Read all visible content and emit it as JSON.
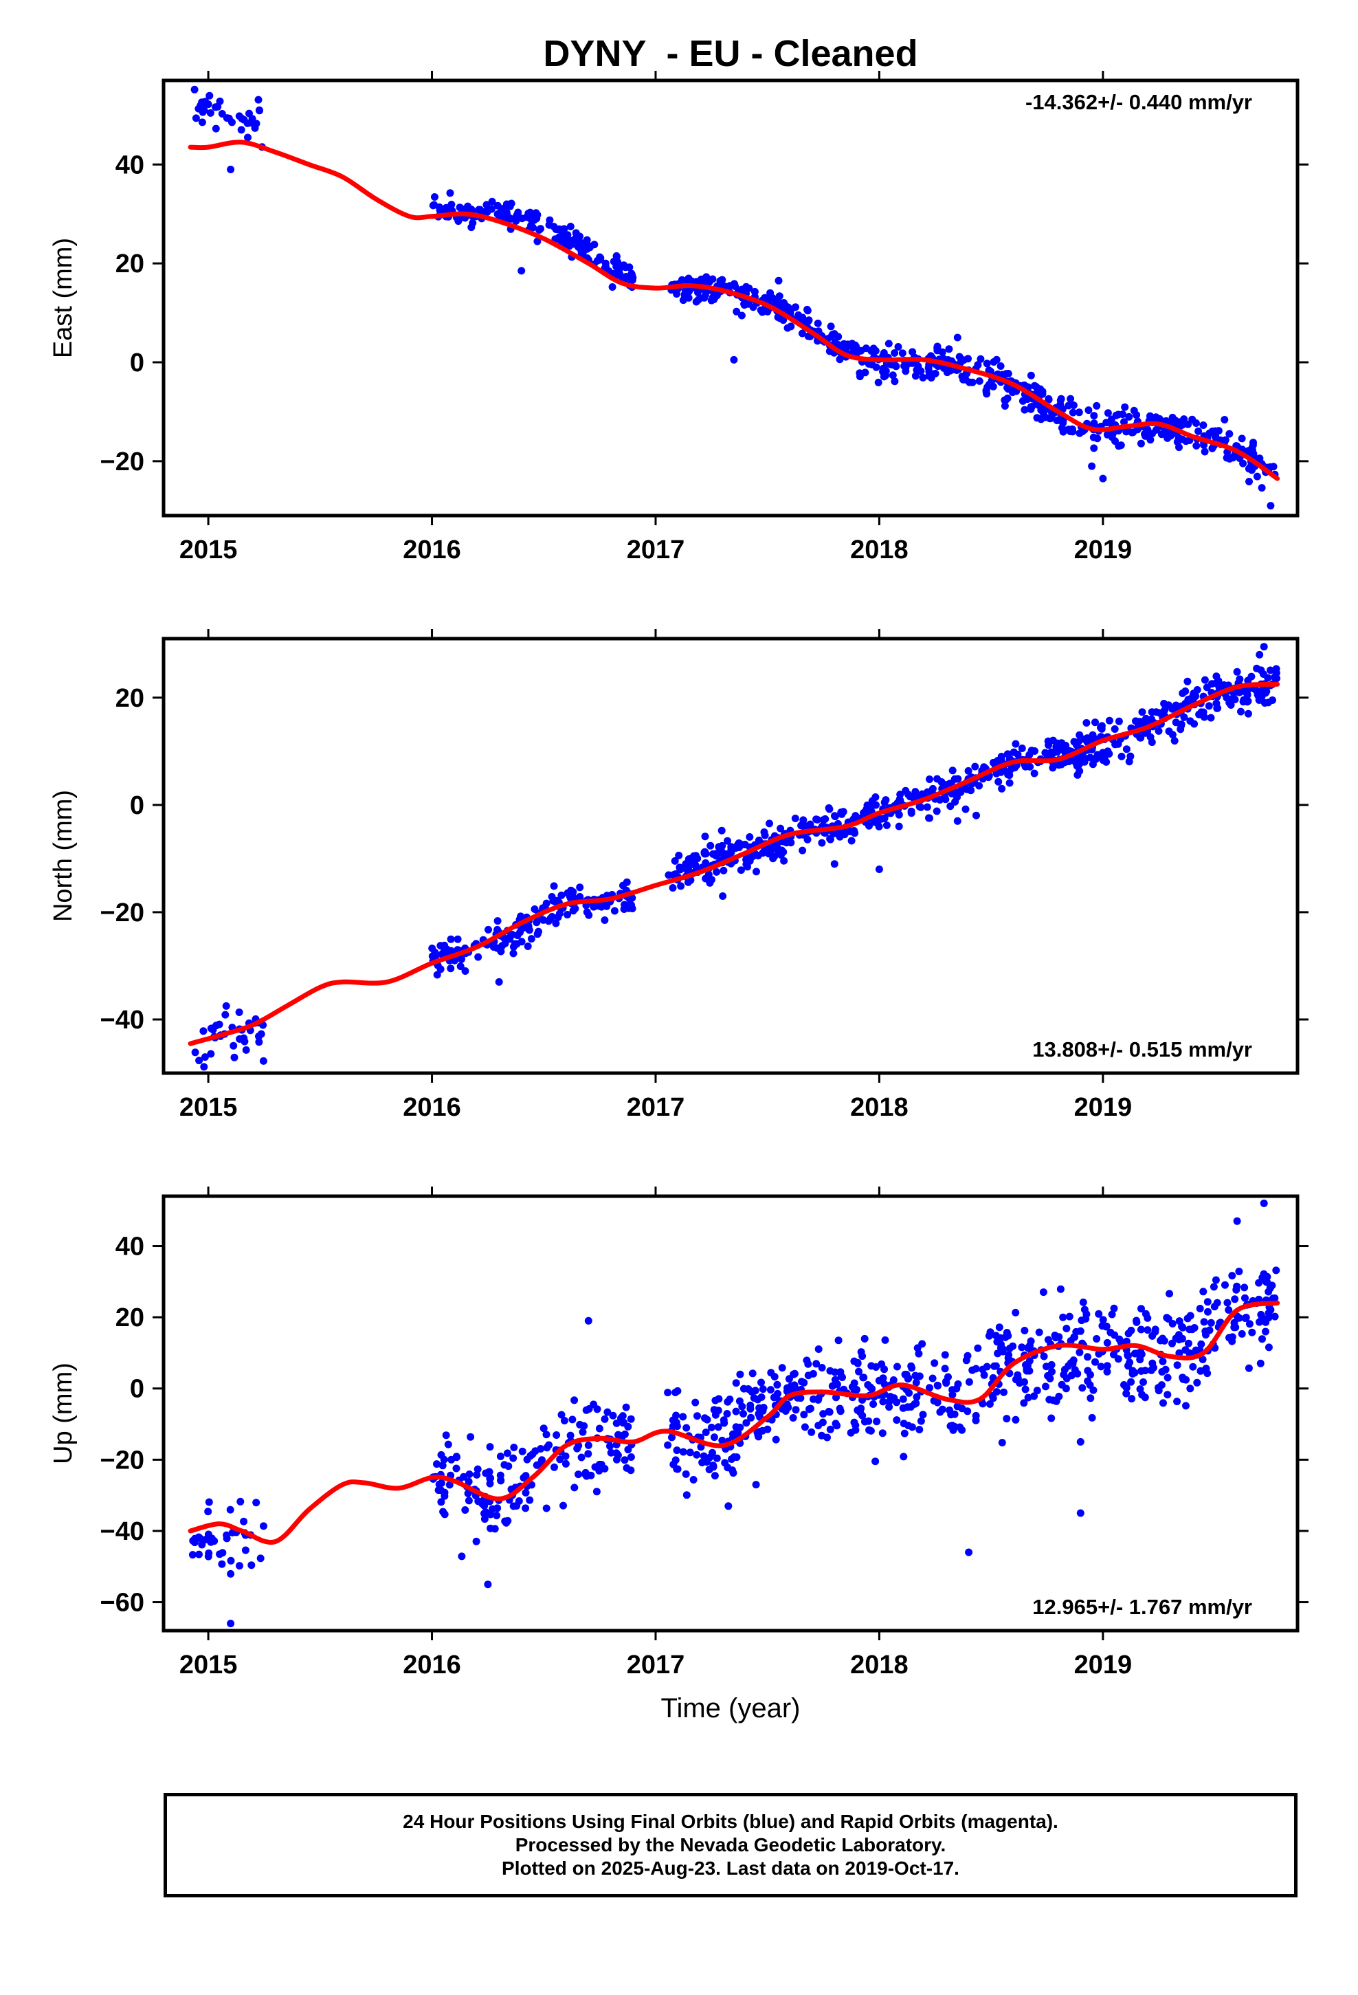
{
  "chart_data": {
    "type": "scatter",
    "title": "DYNY  - EU - Cleaned",
    "xlabel": "Time (year)",
    "xlim": [
      2014.8,
      2019.87
    ],
    "x_ticks": [
      2015,
      2016,
      2017,
      2018,
      2019
    ],
    "x_tick_labels": [
      "2015",
      "2016",
      "2017",
      "2018",
      "2019"
    ],
    "colors": {
      "points": "#0000ff",
      "model": "#ff0000",
      "frame": "#000000"
    },
    "panels": [
      {
        "key": "east",
        "ylabel": "East (mm)",
        "ylim": [
          -31,
          57
        ],
        "y_ticks": [
          -20,
          0,
          20,
          40
        ],
        "y_tick_labels": [
          "−20",
          "0",
          "20",
          "40"
        ],
        "rate_label": "-14.362+/- 0.440 mm/yr",
        "rate_position": "top-right",
        "model_line": {
          "x": [
            2014.92,
            2015.0,
            2015.15,
            2015.3,
            2015.45,
            2015.6,
            2015.75,
            2015.9,
            2016.0,
            2016.15,
            2016.3,
            2016.5,
            2016.7,
            2016.85,
            2017.0,
            2017.15,
            2017.3,
            2017.5,
            2017.7,
            2017.85,
            2018.0,
            2018.2,
            2018.4,
            2018.6,
            2018.8,
            2018.95,
            2019.1,
            2019.25,
            2019.4,
            2019.6,
            2019.78
          ],
          "y": [
            43.5,
            43.5,
            44.5,
            42.5,
            40.0,
            37.5,
            33.0,
            29.5,
            29.5,
            30.0,
            28.5,
            25.0,
            20.0,
            16.0,
            15.0,
            15.5,
            14.5,
            11.5,
            6.0,
            1.5,
            0.5,
            0.5,
            -1.5,
            -4.5,
            -10.0,
            -13.5,
            -13.0,
            -12.5,
            -15.0,
            -18.0,
            -23.5
          ]
        },
        "segments": [
          {
            "x0": 2014.92,
            "x1": 2015.25,
            "count": 38,
            "scatter": 2.5,
            "trend": [
              [
                2014.92,
                52
              ],
              [
                2015.05,
                49
              ],
              [
                2015.25,
                48
              ]
            ]
          },
          {
            "x0": 2016.0,
            "x1": 2016.9,
            "count": 170,
            "scatter": 1.5,
            "trend": [
              [
                2016.0,
                31
              ],
              [
                2016.35,
                30
              ],
              [
                2016.6,
                25
              ],
              [
                2016.9,
                16
              ]
            ]
          },
          {
            "x0": 2017.05,
            "x1": 2017.55,
            "count": 100,
            "scatter": 1.5,
            "trend": [
              [
                2017.05,
                15.5
              ],
              [
                2017.3,
                14.5
              ],
              [
                2017.55,
                11
              ]
            ]
          },
          {
            "x0": 2017.55,
            "x1": 2018.55,
            "count": 220,
            "scatter": 1.8,
            "trend": [
              [
                2017.55,
                11
              ],
              [
                2017.85,
                2
              ],
              [
                2018.0,
                0.5
              ],
              [
                2018.25,
                0.5
              ],
              [
                2018.55,
                -3.5
              ]
            ]
          },
          {
            "x0": 2018.55,
            "x1": 2019.78,
            "count": 260,
            "scatter": 1.8,
            "trend": [
              [
                2018.55,
                -3.5
              ],
              [
                2018.9,
                -12.5
              ],
              [
                2019.1,
                -13
              ],
              [
                2019.35,
                -13.5
              ],
              [
                2019.6,
                -17
              ],
              [
                2019.78,
                -24
              ]
            ]
          }
        ],
        "outliers": [
          {
            "x": 2015.1,
            "y": 39
          },
          {
            "x": 2016.4,
            "y": 18.5
          },
          {
            "x": 2017.35,
            "y": 0.5
          },
          {
            "x": 2017.55,
            "y": 16.5
          },
          {
            "x": 2018.35,
            "y": 5
          },
          {
            "x": 2018.95,
            "y": -21
          },
          {
            "x": 2019.0,
            "y": -23.5
          },
          {
            "x": 2019.75,
            "y": -29
          }
        ]
      },
      {
        "key": "north",
        "ylabel": "North (mm)",
        "ylim": [
          -50,
          31
        ],
        "y_ticks": [
          -40,
          -20,
          0,
          20
        ],
        "y_tick_labels": [
          "−40",
          "−20",
          "0",
          "20"
        ],
        "rate_label": "13.808+/- 0.515 mm/yr",
        "rate_position": "bottom-right",
        "model_line": {
          "x": [
            2014.92,
            2015.05,
            2015.2,
            2015.35,
            2015.5,
            2015.6,
            2015.8,
            2016.0,
            2016.2,
            2016.4,
            2016.6,
            2016.8,
            2017.0,
            2017.2,
            2017.4,
            2017.6,
            2017.85,
            2018.0,
            2018.2,
            2018.4,
            2018.6,
            2018.8,
            2019.0,
            2019.2,
            2019.4,
            2019.6,
            2019.78
          ],
          "y": [
            -44.5,
            -43.0,
            -41.0,
            -37.5,
            -34.0,
            -33.0,
            -33.0,
            -29.5,
            -26.5,
            -22.0,
            -18.5,
            -17.5,
            -15.0,
            -12.5,
            -9.0,
            -5.5,
            -4.0,
            -1.5,
            1.0,
            4.5,
            8.0,
            8.5,
            12.0,
            14.5,
            18.5,
            22.0,
            22.5
          ]
        },
        "segments": [
          {
            "x0": 2014.92,
            "x1": 2015.25,
            "count": 38,
            "scatter": 2.3,
            "trend": [
              [
                2014.92,
                -44.5
              ],
              [
                2015.25,
                -41
              ]
            ]
          },
          {
            "x0": 2016.0,
            "x1": 2016.9,
            "count": 170,
            "scatter": 1.6,
            "trend": [
              [
                2016.0,
                -28.5
              ],
              [
                2016.3,
                -25
              ],
              [
                2016.6,
                -18
              ],
              [
                2016.9,
                -17.5
              ]
            ]
          },
          {
            "x0": 2017.05,
            "x1": 2018.0,
            "count": 240,
            "scatter": 1.6,
            "trend": [
              [
                2017.05,
                -13.5
              ],
              [
                2017.4,
                -9
              ],
              [
                2017.6,
                -5.5
              ],
              [
                2017.85,
                -4
              ],
              [
                2018.0,
                -1.5
              ]
            ]
          },
          {
            "x0": 2018.0,
            "x1": 2018.9,
            "count": 200,
            "scatter": 1.6,
            "trend": [
              [
                2018.0,
                -1.5
              ],
              [
                2018.3,
                2.5
              ],
              [
                2018.6,
                8
              ],
              [
                2018.9,
                9
              ]
            ]
          },
          {
            "x0": 2018.9,
            "x1": 2019.78,
            "count": 210,
            "scatter": 2.0,
            "trend": [
              [
                2018.9,
                10
              ],
              [
                2019.2,
                14.5
              ],
              [
                2019.5,
                20.5
              ],
              [
                2019.78,
                22.5
              ]
            ]
          }
        ],
        "outliers": [
          {
            "x": 2016.3,
            "y": -33
          },
          {
            "x": 2017.3,
            "y": -17
          },
          {
            "x": 2017.8,
            "y": -11
          },
          {
            "x": 2018.0,
            "y": -12
          },
          {
            "x": 2018.35,
            "y": -3
          },
          {
            "x": 2019.7,
            "y": 28
          },
          {
            "x": 2019.72,
            "y": 29.5
          },
          {
            "x": 2019.65,
            "y": 17
          }
        ]
      },
      {
        "key": "up",
        "ylabel": "Up (mm)",
        "ylim": [
          -68,
          54
        ],
        "y_ticks": [
          -60,
          -40,
          -20,
          0,
          20,
          40
        ],
        "y_tick_labels": [
          "−60",
          "−40",
          "−20",
          "0",
          "20",
          "40"
        ],
        "rate_label": "12.965+/- 1.767 mm/yr",
        "rate_position": "bottom-right",
        "model_line": {
          "x": [
            2014.92,
            2015.05,
            2015.15,
            2015.3,
            2015.45,
            2015.6,
            2015.7,
            2015.85,
            2016.0,
            2016.1,
            2016.3,
            2016.45,
            2016.6,
            2016.75,
            2016.9,
            2017.05,
            2017.3,
            2017.5,
            2017.6,
            2017.75,
            2017.95,
            2018.1,
            2018.3,
            2018.45,
            2018.6,
            2018.8,
            2019.0,
            2019.15,
            2019.3,
            2019.45,
            2019.6,
            2019.78
          ],
          "y": [
            -40,
            -38,
            -40,
            -43,
            -34,
            -27,
            -26.5,
            -28,
            -25,
            -26,
            -31,
            -25,
            -16,
            -14,
            -15,
            -12,
            -16,
            -8,
            -2,
            -1,
            -2,
            1,
            -3,
            -3,
            7,
            12,
            11,
            12,
            9,
            10,
            22,
            24
          ]
        },
        "segments": [
          {
            "x0": 2014.92,
            "x1": 2015.25,
            "count": 40,
            "scatter": 5.5,
            "trend": [
              [
                2014.92,
                -40
              ],
              [
                2015.25,
                -42
              ]
            ]
          },
          {
            "x0": 2016.0,
            "x1": 2016.9,
            "count": 180,
            "scatter": 6.5,
            "trend": [
              [
                2016.0,
                -25
              ],
              [
                2016.3,
                -31
              ],
              [
                2016.6,
                -16
              ],
              [
                2016.9,
                -15
              ]
            ]
          },
          {
            "x0": 2017.05,
            "x1": 2018.0,
            "count": 240,
            "scatter": 7.0,
            "trend": [
              [
                2017.05,
                -12
              ],
              [
                2017.3,
                -16
              ],
              [
                2017.6,
                -2
              ],
              [
                2018.0,
                -2
              ]
            ]
          },
          {
            "x0": 2018.0,
            "x1": 2018.9,
            "count": 200,
            "scatter": 7.0,
            "trend": [
              [
                2018.0,
                -1
              ],
              [
                2018.3,
                -3
              ],
              [
                2018.6,
                7
              ],
              [
                2018.9,
                11
              ]
            ]
          },
          {
            "x0": 2018.9,
            "x1": 2019.78,
            "count": 210,
            "scatter": 7.5,
            "trend": [
              [
                2018.9,
                11
              ],
              [
                2019.3,
                9
              ],
              [
                2019.6,
                22
              ],
              [
                2019.78,
                24
              ]
            ]
          }
        ],
        "outliers": [
          {
            "x": 2015.1,
            "y": -66
          },
          {
            "x": 2016.25,
            "y": -55
          },
          {
            "x": 2018.4,
            "y": -46
          },
          {
            "x": 2018.9,
            "y": -35
          },
          {
            "x": 2016.7,
            "y": 19
          },
          {
            "x": 2019.72,
            "y": 52
          },
          {
            "x": 2019.6,
            "y": 47
          },
          {
            "x": 2018.9,
            "y": -15
          }
        ]
      }
    ]
  },
  "footer": {
    "line1": "24 Hour Positions Using Final Orbits (blue) and Rapid Orbits (magenta).",
    "line2": "Processed by the Nevada Geodetic Laboratory.",
    "line3": "Plotted on 2025-Aug-23. Last data on 2019-Oct-17."
  }
}
